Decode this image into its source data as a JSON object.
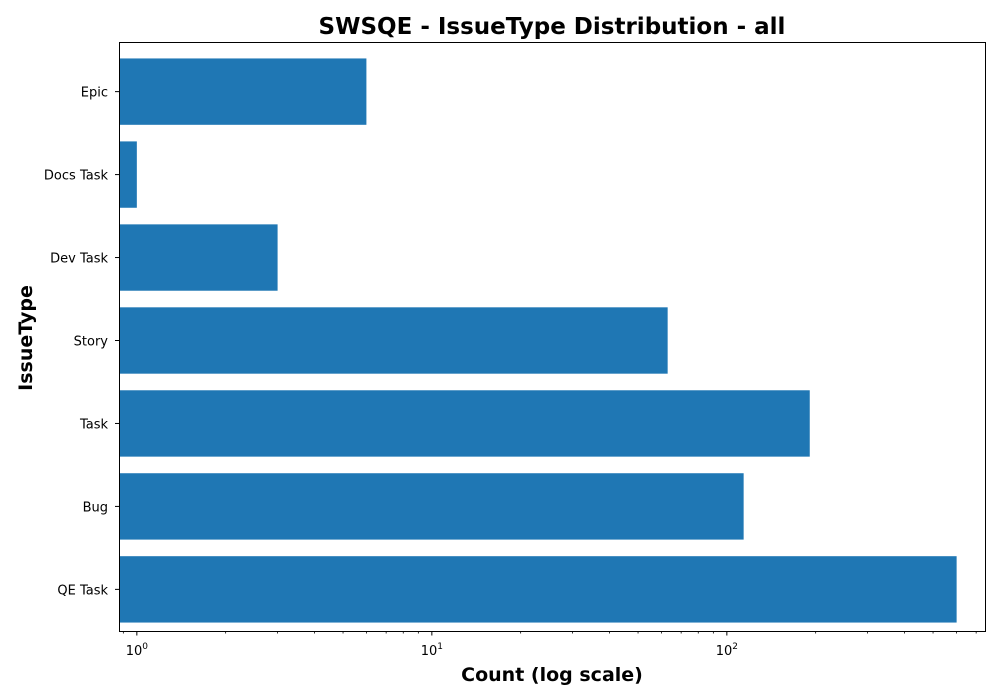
{
  "chart_data": {
    "type": "bar",
    "orientation": "horizontal",
    "title": "SWSQE - IssueType Distribution - all",
    "xlabel": "Count (log scale)",
    "ylabel": "IssueType",
    "xscale": "log",
    "xlim": [
      0.87,
      750
    ],
    "x_ticks": [
      {
        "value": 1,
        "base": "10",
        "exp": "0"
      },
      {
        "value": 10,
        "base": "10",
        "exp": "1"
      },
      {
        "value": 100,
        "base": "10",
        "exp": "2"
      }
    ],
    "categories": [
      "Epic",
      "Docs Task",
      "Dev Task",
      "Story",
      "Task",
      "Bug",
      "QE Task"
    ],
    "values": [
      6,
      1,
      3,
      63,
      191,
      114,
      601
    ],
    "bar_color": "#1f77b4",
    "grid": false,
    "legend": "none"
  }
}
